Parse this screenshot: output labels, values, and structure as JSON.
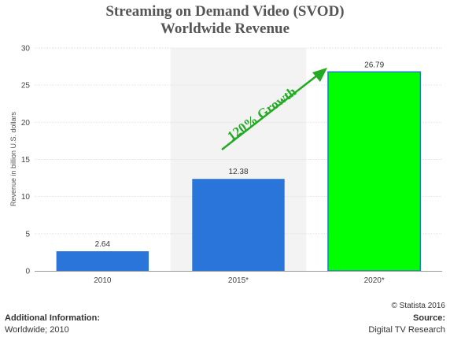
{
  "title_line1": "Streaming on Demand Video (SVOD)",
  "title_line2": "Worldwide Revenue",
  "annotation": "120% Growth",
  "footer": {
    "additional_info_label": "Additional Information:",
    "additional_info_value": "Worldwide; 2010",
    "copyright": "© Statista 2016",
    "source_label": "Source:",
    "source_value": "Digital TV Research"
  },
  "colors": {
    "bar_blue": "#2a75d9",
    "bar_green": "#00ff00",
    "growth_green": "#22aa22",
    "band": "#f3f3f3"
  },
  "chart_data": {
    "type": "bar",
    "categories": [
      "2010",
      "2015*",
      "2020*"
    ],
    "values": [
      2.64,
      12.38,
      26.79
    ],
    "value_labels": [
      "2.64",
      "12.38",
      "26.79"
    ],
    "ylabel": "Revenue in billion U.S. dollars",
    "ylim": [
      0,
      30
    ],
    "yticks": [
      0,
      5,
      10,
      15,
      20,
      25,
      30
    ],
    "grid": true,
    "highlighted_category": "2015*"
  }
}
